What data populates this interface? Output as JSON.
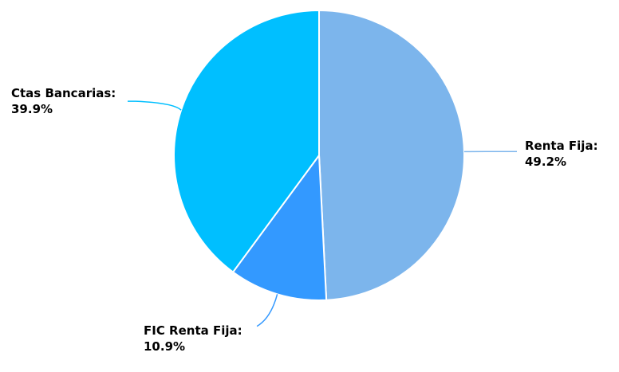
{
  "chart_data": {
    "type": "pie",
    "title": "",
    "slices": [
      {
        "label": "Renta Fija",
        "value": 49.2,
        "value_text": "49.2%",
        "color": "#7cb5ec"
      },
      {
        "label": "FIC Renta Fija",
        "value": 10.9,
        "value_text": "10.9%",
        "color": "#3399ff"
      },
      {
        "label": "Ctas Bancarias",
        "value": 39.9,
        "value_text": "39.9%",
        "color": "#00bfff"
      }
    ],
    "legend": "none",
    "data_labels": "outside-with-connectors"
  }
}
